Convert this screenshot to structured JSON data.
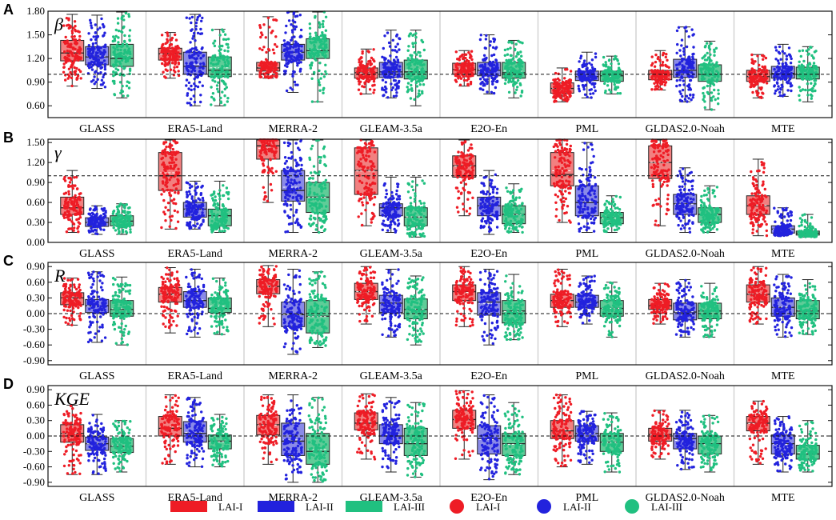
{
  "chart_data": {
    "type": "boxplot",
    "categories": [
      "GLASS",
      "ERA5-Land",
      "MERRA-2",
      "GLEAM-3.5a",
      "E2O-En",
      "PML",
      "GLDAS2.0-Noah",
      "MTE"
    ],
    "series_names": [
      "LAI-I",
      "LAI-II",
      "LAI-III"
    ],
    "series_colors": [
      "#ee1c25",
      "#2222dd",
      "#20c080"
    ],
    "box_fill_colors": [
      "#f28080",
      "#8a8ae8",
      "#5fcc98"
    ],
    "legend": {
      "position": "bottom",
      "entries": [
        {
          "label": "LAI-I",
          "kind": "box",
          "series": 0
        },
        {
          "label": "LAI-II",
          "kind": "box",
          "series": 1
        },
        {
          "label": "LAI-III",
          "kind": "box",
          "series": 2
        },
        {
          "label": "LAI-I",
          "kind": "point",
          "series": 0
        },
        {
          "label": "LAI-II",
          "kind": "point",
          "series": 1
        },
        {
          "label": "LAI-III",
          "kind": "point",
          "series": 2
        }
      ]
    },
    "panels": [
      {
        "letter": "A",
        "metric": "β",
        "ylim": [
          0.45,
          1.8
        ],
        "reference_line": 1.0,
        "yticks": [
          0.6,
          0.9,
          1.2,
          1.5,
          1.8
        ],
        "ytick_labels": [
          "0.60",
          "0.90",
          "1.20",
          "1.50",
          "1.80"
        ],
        "boxes": [
          [
            [
              0.85,
              1.17,
              1.27,
              1.43,
              1.76
            ],
            [
              0.82,
              1.12,
              1.22,
              1.35,
              1.75
            ],
            [
              0.7,
              1.1,
              1.2,
              1.38,
              1.8
            ]
          ],
          [
            [
              0.95,
              1.18,
              1.26,
              1.33,
              1.53
            ],
            [
              0.6,
              1.0,
              1.1,
              1.28,
              1.76
            ],
            [
              0.6,
              0.97,
              1.05,
              1.22,
              1.57
            ]
          ],
          [
            [
              0.95,
              1.04,
              1.08,
              1.15,
              1.73
            ],
            [
              0.77,
              1.18,
              1.28,
              1.38,
              1.8
            ],
            [
              0.65,
              1.2,
              1.3,
              1.45,
              1.8
            ]
          ],
          [
            [
              0.75,
              0.95,
              1.02,
              1.08,
              1.32
            ],
            [
              0.7,
              0.96,
              1.03,
              1.15,
              1.56
            ],
            [
              0.6,
              0.94,
              1.03,
              1.18,
              1.56
            ]
          ],
          [
            [
              0.85,
              1.0,
              1.06,
              1.14,
              1.3
            ],
            [
              0.75,
              0.98,
              1.05,
              1.15,
              1.5
            ],
            [
              0.7,
              0.95,
              1.02,
              1.15,
              1.43
            ]
          ],
          [
            [
              0.65,
              0.76,
              0.82,
              0.89,
              1.08
            ],
            [
              0.7,
              0.92,
              0.97,
              1.04,
              1.28
            ],
            [
              0.75,
              0.91,
              0.98,
              1.04,
              1.23
            ]
          ],
          [
            [
              0.8,
              0.93,
              1.0,
              1.05,
              1.3
            ],
            [
              0.65,
              0.96,
              1.05,
              1.19,
              1.6
            ],
            [
              0.55,
              0.91,
              1.0,
              1.12,
              1.42
            ]
          ],
          [
            [
              0.7,
              0.91,
              0.97,
              1.05,
              1.25
            ],
            [
              0.72,
              0.95,
              1.01,
              1.1,
              1.38
            ],
            [
              0.65,
              0.94,
              1.0,
              1.09,
              1.35
            ]
          ]
        ]
      },
      {
        "letter": "B",
        "metric": "γ",
        "ylim": [
          0.0,
          1.55
        ],
        "reference_line": 1.0,
        "yticks": [
          0.0,
          0.3,
          0.6,
          0.9,
          1.2,
          1.5
        ],
        "ytick_labels": [
          "0.00",
          "0.30",
          "0.60",
          "0.90",
          "1.20",
          "1.50"
        ],
        "boxes": [
          [
            [
              0.15,
              0.42,
              0.52,
              0.68,
              1.08
            ],
            [
              0.12,
              0.24,
              0.3,
              0.37,
              0.55
            ],
            [
              0.12,
              0.25,
              0.32,
              0.4,
              0.58
            ]
          ],
          [
            [
              0.2,
              0.78,
              1.0,
              1.35,
              1.55
            ],
            [
              0.2,
              0.38,
              0.5,
              0.6,
              0.92
            ],
            [
              0.15,
              0.25,
              0.4,
              0.5,
              0.92
            ]
          ],
          [
            [
              0.6,
              1.25,
              1.45,
              1.55,
              1.55
            ],
            [
              0.15,
              0.62,
              0.78,
              1.08,
              1.55
            ],
            [
              0.15,
              0.45,
              0.68,
              0.9,
              1.55
            ]
          ],
          [
            [
              0.25,
              0.72,
              1.08,
              1.42,
              1.55
            ],
            [
              0.15,
              0.4,
              0.52,
              0.58,
              0.98
            ],
            [
              0.08,
              0.25,
              0.38,
              0.52,
              0.98
            ]
          ],
          [
            [
              0.4,
              0.98,
              1.15,
              1.3,
              1.55
            ],
            [
              0.12,
              0.4,
              0.55,
              0.68,
              1.08
            ],
            [
              0.15,
              0.28,
              0.42,
              0.55,
              0.88
            ]
          ],
          [
            [
              0.3,
              0.85,
              1.02,
              1.35,
              1.55
            ],
            [
              0.15,
              0.4,
              0.6,
              0.85,
              1.5
            ],
            [
              0.15,
              0.28,
              0.37,
              0.45,
              0.7
            ]
          ],
          [
            [
              0.25,
              0.96,
              1.2,
              1.45,
              1.55
            ],
            [
              0.15,
              0.42,
              0.58,
              0.72,
              1.12
            ],
            [
              0.15,
              0.3,
              0.42,
              0.52,
              0.85
            ]
          ],
          [
            [
              0.1,
              0.42,
              0.55,
              0.7,
              1.25
            ],
            [
              0.1,
              0.14,
              0.2,
              0.25,
              0.52
            ],
            [
              0.08,
              0.11,
              0.14,
              0.17,
              0.42
            ]
          ]
        ]
      },
      {
        "letter": "C",
        "metric": "R",
        "ylim": [
          -0.98,
          0.98
        ],
        "reference_line": 0.0,
        "yticks": [
          -0.9,
          -0.6,
          -0.3,
          0.0,
          0.3,
          0.6,
          0.9
        ],
        "ytick_labels": [
          "-0.90",
          "-0.60",
          "-0.30",
          "0.00",
          "0.30",
          "0.60",
          "0.90"
        ],
        "boxes": [
          [
            [
              -0.22,
              0.17,
              0.3,
              0.4,
              0.68
            ],
            [
              -0.55,
              0.02,
              0.15,
              0.27,
              0.8
            ],
            [
              -0.6,
              -0.05,
              0.08,
              0.25,
              0.7
            ]
          ],
          [
            [
              -0.37,
              0.22,
              0.37,
              0.5,
              0.88
            ],
            [
              -0.45,
              0.12,
              0.25,
              0.42,
              0.85
            ],
            [
              -0.4,
              0.02,
              0.1,
              0.3,
              0.68
            ]
          ],
          [
            [
              -0.25,
              0.38,
              0.52,
              0.65,
              0.92
            ],
            [
              -0.78,
              -0.25,
              -0.02,
              0.22,
              0.85
            ],
            [
              -0.65,
              -0.37,
              -0.05,
              0.25,
              0.8
            ]
          ],
          [
            [
              -0.2,
              0.27,
              0.42,
              0.58,
              0.9
            ],
            [
              -0.45,
              0.02,
              0.2,
              0.35,
              0.85
            ],
            [
              -0.6,
              -0.1,
              0.08,
              0.28,
              0.72
            ]
          ],
          [
            [
              -0.25,
              0.25,
              0.42,
              0.55,
              0.9
            ],
            [
              -0.6,
              -0.03,
              0.22,
              0.4,
              0.85
            ],
            [
              -0.5,
              -0.18,
              0.05,
              0.25,
              0.75
            ]
          ],
          [
            [
              -0.25,
              0.12,
              0.25,
              0.37,
              0.85
            ],
            [
              -0.2,
              0.12,
              0.22,
              0.35,
              0.72
            ],
            [
              -0.45,
              -0.05,
              0.1,
              0.25,
              0.6
            ]
          ],
          [
            [
              -0.2,
              0.08,
              0.15,
              0.27,
              0.58
            ],
            [
              -0.45,
              -0.12,
              0.03,
              0.2,
              0.65
            ],
            [
              -0.45,
              -0.1,
              0.05,
              0.2,
              0.58
            ]
          ],
          [
            [
              -0.2,
              0.22,
              0.37,
              0.55,
              0.9
            ],
            [
              -0.45,
              -0.05,
              0.12,
              0.3,
              0.75
            ],
            [
              -0.4,
              -0.1,
              0.05,
              0.25,
              0.65
            ]
          ]
        ]
      },
      {
        "letter": "D",
        "metric": "KGE",
        "ylim": [
          -0.98,
          0.98
        ],
        "reference_line": 0.0,
        "yticks": [
          -0.9,
          -0.6,
          -0.3,
          0.0,
          0.3,
          0.6,
          0.9
        ],
        "ytick_labels": [
          "-0.90",
          "-0.60",
          "-0.30",
          "0.00",
          "0.30",
          "0.60",
          "0.90"
        ],
        "boxes": [
          [
            [
              -0.75,
              -0.12,
              0.05,
              0.22,
              0.6
            ],
            [
              -0.75,
              -0.28,
              -0.15,
              -0.02,
              0.42
            ],
            [
              -0.7,
              -0.32,
              -0.2,
              -0.05,
              0.3
            ]
          ],
          [
            [
              -0.55,
              0.0,
              0.15,
              0.38,
              0.8
            ],
            [
              -0.6,
              -0.12,
              0.05,
              0.28,
              0.75
            ],
            [
              -0.6,
              -0.25,
              -0.1,
              0.02,
              0.42
            ]
          ],
          [
            [
              -0.55,
              0.02,
              0.22,
              0.4,
              0.8
            ],
            [
              -0.9,
              -0.38,
              -0.1,
              0.25,
              0.8
            ],
            [
              -0.9,
              -0.55,
              -0.3,
              0.05,
              0.75
            ]
          ],
          [
            [
              -0.45,
              0.12,
              0.25,
              0.45,
              0.82
            ],
            [
              -0.7,
              -0.15,
              0.0,
              0.22,
              0.75
            ],
            [
              -0.8,
              -0.38,
              -0.15,
              0.15,
              0.65
            ]
          ],
          [
            [
              -0.45,
              0.15,
              0.32,
              0.5,
              0.88
            ],
            [
              -0.85,
              -0.35,
              -0.05,
              0.2,
              0.8
            ],
            [
              -0.75,
              -0.38,
              -0.15,
              0.05,
              0.65
            ]
          ],
          [
            [
              -0.6,
              -0.05,
              0.1,
              0.3,
              0.8
            ],
            [
              -0.55,
              -0.1,
              0.05,
              0.2,
              0.48
            ],
            [
              -0.7,
              -0.3,
              -0.12,
              0.05,
              0.45
            ]
          ],
          [
            [
              -0.45,
              -0.1,
              0.03,
              0.15,
              0.5
            ],
            [
              -0.65,
              -0.25,
              -0.05,
              0.05,
              0.5
            ],
            [
              -0.7,
              -0.35,
              -0.15,
              0.0,
              0.4
            ]
          ],
          [
            [
              -0.55,
              0.1,
              0.25,
              0.38,
              0.68
            ],
            [
              -0.7,
              -0.35,
              -0.15,
              0.02,
              0.38
            ],
            [
              -0.7,
              -0.45,
              -0.35,
              -0.18,
              0.3
            ]
          ]
        ]
      }
    ]
  }
}
